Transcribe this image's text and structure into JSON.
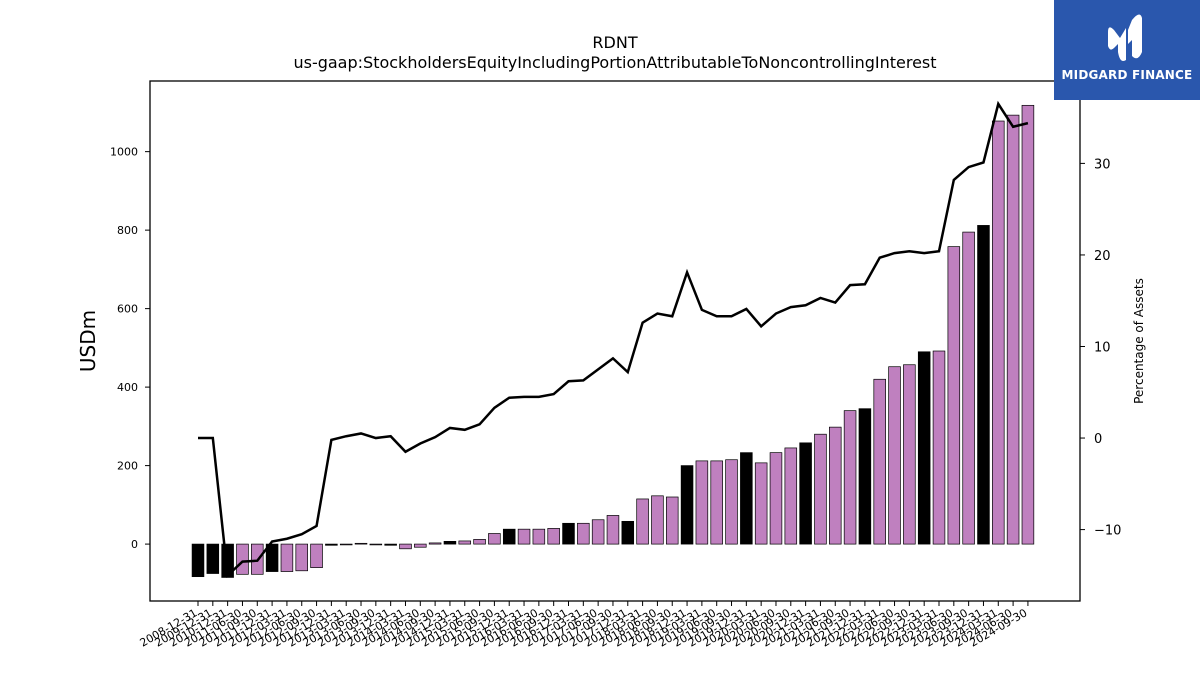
{
  "colors": {
    "bar_primary": "#bf80bf",
    "bar_annual": "#000000",
    "line": "#000000",
    "logo_bg": "#2a57ad",
    "logo_text": "#ffffff"
  },
  "logo": {
    "text": "MIDGARD FINANCE",
    "icon": "midgard-logo-icon"
  },
  "chart_data": {
    "type": "bar",
    "title": "RDNT",
    "subtitle": "us-gaap:StockholdersEquityIncludingPortionAttributableToNoncontrollingInterest",
    "ylabel": "USDm",
    "y2label": "Percentage of Assets",
    "ylim": [
      -145,
      1180
    ],
    "y2lim": [
      -17.8,
      39
    ],
    "yticks": [
      0,
      200,
      400,
      600,
      800,
      1000
    ],
    "y2ticks": [
      -10,
      0,
      10,
      20,
      30
    ],
    "categories": [
      "2008-12-31",
      "2009-12-31",
      "2010-12-31",
      "2011-06-30",
      "2011-09-30",
      "2011-12-31",
      "2012-03-31",
      "2012-06-30",
      "2012-09-30",
      "2012-12-31",
      "2013-03-31",
      "2013-06-30",
      "2013-09-30",
      "2013-12-31",
      "2014-03-31",
      "2014-06-30",
      "2014-09-30",
      "2014-12-31",
      "2015-03-31",
      "2015-06-30",
      "2015-09-30",
      "2015-12-31",
      "2016-03-31",
      "2016-06-30",
      "2016-09-30",
      "2016-12-31",
      "2017-03-31",
      "2017-06-30",
      "2017-09-30",
      "2017-12-31",
      "2018-03-31",
      "2018-06-30",
      "2018-09-30",
      "2018-12-31",
      "2019-03-31",
      "2019-06-30",
      "2019-09-30",
      "2019-12-31",
      "2020-03-31",
      "2020-06-30",
      "2020-09-30",
      "2020-12-31",
      "2021-03-31",
      "2021-06-30",
      "2021-09-30",
      "2021-12-31",
      "2022-03-31",
      "2022-06-30",
      "2022-09-30",
      "2022-12-31",
      "2023-03-31",
      "2023-06-30",
      "2023-09-30",
      "2023-12-31",
      "2024-03-31",
      "2024-06-30",
      "2024-09-30"
    ],
    "bar_annual_flags": [
      true,
      true,
      true,
      false,
      false,
      true,
      false,
      false,
      false,
      true,
      false,
      false,
      false,
      true,
      false,
      false,
      false,
      true,
      false,
      false,
      false,
      true,
      false,
      false,
      false,
      true,
      false,
      false,
      false,
      true,
      false,
      false,
      false,
      true,
      false,
      false,
      false,
      true,
      false,
      false,
      false,
      true,
      false,
      false,
      false,
      true,
      false,
      false,
      false,
      true,
      false,
      false,
      false,
      true,
      false,
      false,
      false
    ],
    "series": [
      {
        "name": "USDm",
        "type": "bar",
        "values": [
          -83,
          -75,
          -85,
          -77,
          -77,
          -70,
          -70,
          -68,
          -60,
          -3,
          -2,
          2,
          -2,
          -3,
          -12,
          -8,
          3,
          7,
          8,
          12,
          27,
          38,
          38,
          38,
          40,
          53,
          53,
          62,
          73,
          58,
          115,
          123,
          120,
          200,
          212,
          212,
          215,
          233,
          207,
          233,
          245,
          258,
          280,
          298,
          340,
          345,
          420,
          452,
          457,
          490,
          492,
          758,
          795,
          812,
          1078,
          1093,
          1118
        ]
      },
      {
        "name": "Percentage of Assets",
        "type": "line",
        "values": [
          0,
          0,
          -15,
          -13.5,
          -13.4,
          -11.3,
          -11,
          -10.5,
          -9.6,
          -0.2,
          0.2,
          0.5,
          0,
          0.2,
          -1.5,
          -0.6,
          0.1,
          1.1,
          0.9,
          1.5,
          3.3,
          4.4,
          4.5,
          4.5,
          4.8,
          6.2,
          6.3,
          7.5,
          8.7,
          7.2,
          12.6,
          13.6,
          13.3,
          18.1,
          14,
          13.3,
          13.3,
          14.1,
          12.2,
          13.6,
          14.3,
          14.5,
          15.3,
          14.8,
          16.7,
          16.8,
          19.7,
          20.2,
          20.4,
          20.2,
          20.4,
          28.2,
          29.6,
          30.1,
          36.5,
          34,
          34.4
        ]
      }
    ]
  }
}
